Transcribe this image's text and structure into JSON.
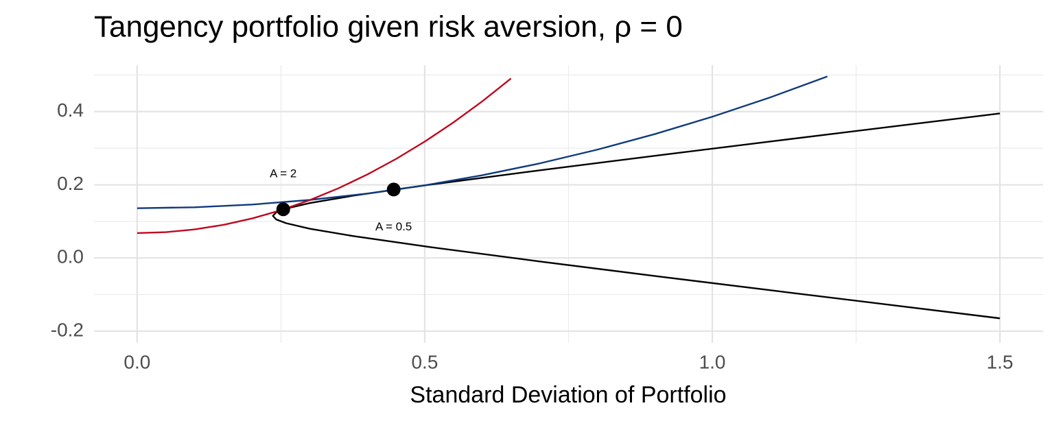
{
  "chart_data": {
    "type": "line",
    "title": "Tangency portfolio given risk aversion, ρ = 0",
    "x_label": "Standard Deviation of Portfolio",
    "xlim": [
      -0.075,
      1.575
    ],
    "ylim": [
      -0.232,
      0.527
    ],
    "xticks": [
      {
        "value": 0,
        "label": "0.0"
      },
      0.5,
      {
        "value": 1,
        "label": "1.0"
      },
      1.5
    ],
    "yticks": [
      -0.2,
      {
        "value": 0,
        "label": "0.0"
      },
      0.2,
      0.4
    ],
    "x_minor_ticks": [
      0.25,
      0.75,
      1.25
    ],
    "y_minor_ticks": [
      -0.1,
      0.1,
      0.3,
      0.5
    ],
    "grid": true,
    "series": [
      {
        "type": "line",
        "color": "#000000",
        "x": [
          1.5,
          1.318,
          1.11,
          0.904,
          0.702,
          0.508,
          0.375,
          0.3,
          0.259,
          0.242,
          0.236,
          0.242,
          0.259,
          0.3,
          0.375,
          0.508,
          0.702,
          0.904,
          1.11,
          1.318,
          1.5
        ],
        "values": [
          -0.165,
          -0.13,
          -0.09,
          -0.05,
          -0.01,
          0.03,
          0.06,
          0.08,
          0.095,
          0.105,
          0.115,
          0.125,
          0.135,
          0.15,
          0.17,
          0.2,
          0.24,
          0.28,
          0.32,
          0.36,
          0.395
        ]
      },
      {
        "type": "line",
        "color": "#0f3a7d",
        "x": [
          0,
          0.1,
          0.2,
          0.3,
          0.4,
          0.5,
          0.6,
          0.7,
          0.8,
          0.9,
          1.0,
          1.1,
          1.2
        ],
        "values": [
          0.136,
          0.1385,
          0.146,
          0.1585,
          0.176,
          0.1985,
          0.226,
          0.2585,
          0.296,
          0.3385,
          0.386,
          0.4385,
          0.496
        ]
      },
      {
        "type": "line",
        "color": "#c0061e",
        "x": [
          0,
          0.05,
          0.1,
          0.15,
          0.2,
          0.25,
          0.3,
          0.35,
          0.4,
          0.45,
          0.5,
          0.55,
          0.6,
          0.65
        ],
        "values": [
          0.068,
          0.0705,
          0.078,
          0.0905,
          0.108,
          0.1305,
          0.158,
          0.1905,
          0.228,
          0.2705,
          0.318,
          0.3705,
          0.428,
          0.4905
        ]
      },
      {
        "type": "scatter",
        "color": "#000000",
        "x": [
          0.254,
          0.446
        ],
        "values": [
          0.133,
          0.187
        ]
      }
    ],
    "annotations": [
      {
        "text": "A = 2",
        "x": 0.254,
        "y": 0.229
      },
      {
        "text": "A = 0.5",
        "x": 0.446,
        "y": 0.084
      }
    ]
  }
}
